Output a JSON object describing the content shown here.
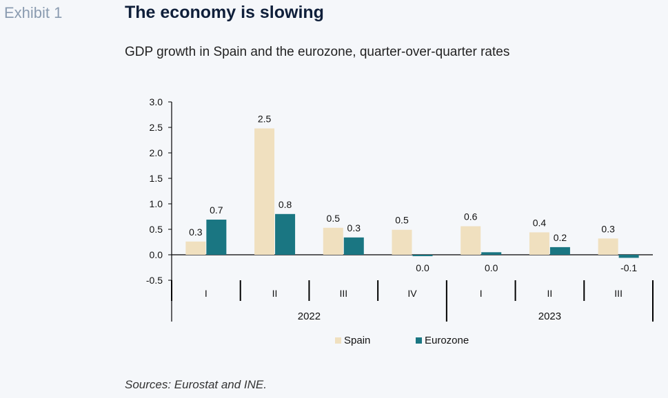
{
  "header": {
    "exhibit": "Exhibit 1",
    "title": "The economy is slowing",
    "subtitle": "GDP growth in Spain and the eurozone, quarter-over-quarter rates"
  },
  "footer": {
    "source": "Sources: Eurostat and INE."
  },
  "colors": {
    "spain": "#f0e0bf",
    "eurozone": "#1a7682",
    "axis": "#000000"
  },
  "chart_data": {
    "type": "bar",
    "title": "",
    "xlabel": "",
    "ylabel": "",
    "ylim": [
      -0.5,
      3.0
    ],
    "yticks": [
      -0.5,
      0.0,
      0.5,
      1.0,
      1.5,
      2.0,
      2.5,
      3.0
    ],
    "ytick_labels": [
      "-0.5",
      "0.0",
      "0.5",
      "1.0",
      "1.5",
      "2.0",
      "2.5",
      "3.0"
    ],
    "categories": [
      "I",
      "II",
      "III",
      "IV",
      "I",
      "II",
      "III"
    ],
    "groups": [
      {
        "label": "2022",
        "count": 4
      },
      {
        "label": "2023",
        "count": 3
      }
    ],
    "series": [
      {
        "name": "Spain",
        "values": [
          0.26,
          2.48,
          0.53,
          0.49,
          0.56,
          0.44,
          0.32
        ],
        "labels": [
          "0.3",
          "2.5",
          "0.5",
          "0.5",
          "0.6",
          "0.4",
          "0.3"
        ]
      },
      {
        "name": "Eurozone",
        "values": [
          0.69,
          0.8,
          0.34,
          -0.02,
          0.05,
          0.15,
          -0.06
        ],
        "labels": [
          "0.7",
          "0.8",
          "0.3",
          "0.0",
          "0.0",
          "0.2",
          "-0.1"
        ]
      }
    ],
    "legend_position": "bottom",
    "grid": false
  }
}
